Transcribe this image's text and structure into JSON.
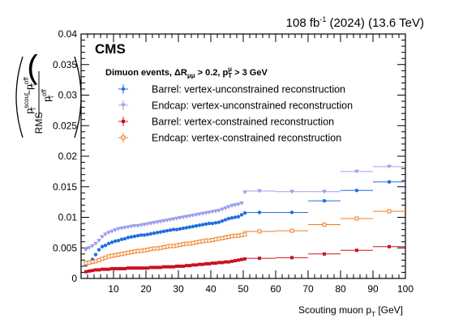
{
  "chart_data": {
    "type": "scatter",
    "header": {
      "experiment": "CMS",
      "lumi_prefix": "108 fb",
      "lumi_sup": "-1",
      "lumi_suffix": " (2024) (13.6 TeV)"
    },
    "selection": {
      "prefix": "Dimuon events,  ΔR",
      "sub1": "μμ",
      "mid": " > 0.2, p",
      "sub2": "T",
      "sup2": "μ",
      "suffix": " > 3 GeV"
    },
    "xlabel": "Scouting muon p",
    "xlabel_sub": "T",
    "xlabel_unit": " [GeV]",
    "ylabel": {
      "rms": "RMS",
      "p": "p",
      "sub": "T",
      "sup_scout": "scout",
      "minus": "−",
      "sup_off": "off"
    },
    "xlim": [
      0,
      100
    ],
    "ylim": [
      0,
      0.04
    ],
    "xticks": [
      10,
      20,
      30,
      40,
      50,
      60,
      70,
      80,
      90,
      100
    ],
    "yticks": [
      "0",
      "0.005",
      "0.01",
      "0.015",
      "0.02",
      "0.025",
      "0.03",
      "0.035",
      "0.04"
    ],
    "yticks_values": [
      0,
      0.005,
      0.01,
      0.015,
      0.02,
      0.025,
      0.03,
      0.035,
      0.04
    ],
    "legend_position": "upper-left",
    "fine_binning": {
      "x_min": 1,
      "x_max": 50,
      "bin_width": 1
    },
    "coarse_bins": [
      [
        50,
        60
      ],
      [
        60,
        70
      ],
      [
        70,
        80
      ],
      [
        80,
        90
      ],
      [
        90,
        100
      ]
    ],
    "series": [
      {
        "name": "Barrel: vertex-unconstrained reconstruction",
        "color": "#1f6fde",
        "marker": "filled-circle",
        "fine_y": [
          0.0022,
          0.0026,
          0.0031,
          0.0039,
          0.0047,
          0.0052,
          0.0054,
          0.0057,
          0.0059,
          0.0061,
          0.0062,
          0.0064,
          0.0065,
          0.0067,
          0.0068,
          0.0069,
          0.007,
          0.0071,
          0.0071,
          0.0072,
          0.0073,
          0.0074,
          0.0075,
          0.0076,
          0.0077,
          0.0078,
          0.0079,
          0.008,
          0.008,
          0.0081,
          0.0082,
          0.0083,
          0.0084,
          0.0085,
          0.0086,
          0.0087,
          0.0088,
          0.0089,
          0.009,
          0.009,
          0.0091,
          0.0092,
          0.0094,
          0.0096,
          0.0098,
          0.0099,
          0.01,
          0.0101,
          0.0104,
          0.0107
        ],
        "coarse_y": [
          0.0108,
          0.0108,
          0.0127,
          0.0144,
          0.0158
        ]
      },
      {
        "name": "Endcap: vertex-unconstrained reconstruction",
        "color": "#9f9fef",
        "marker": "open-triangle",
        "fine_y": [
          0.0047,
          0.005,
          0.0053,
          0.0057,
          0.0062,
          0.0068,
          0.0072,
          0.0075,
          0.0077,
          0.0079,
          0.0081,
          0.0082,
          0.0083,
          0.0084,
          0.0085,
          0.0086,
          0.0086,
          0.0087,
          0.0088,
          0.0089,
          0.009,
          0.0091,
          0.0092,
          0.0093,
          0.0094,
          0.0095,
          0.0096,
          0.0097,
          0.0098,
          0.0099,
          0.01,
          0.0101,
          0.0102,
          0.0103,
          0.0104,
          0.0105,
          0.0106,
          0.0107,
          0.0108,
          0.0109,
          0.011,
          0.0111,
          0.0113,
          0.0115,
          0.0117,
          0.0119,
          0.012,
          0.0121,
          0.0123,
          0.0141
        ],
        "coarse_y": [
          0.0143,
          0.0142,
          0.0142,
          0.0175,
          0.0183
        ]
      },
      {
        "name": "Barrel: vertex-constrained reconstruction",
        "color": "#c8141e",
        "marker": "filled-square",
        "fine_y": [
          0.0011,
          0.0012,
          0.0013,
          0.0014,
          0.0014,
          0.0015,
          0.0015,
          0.0015,
          0.0016,
          0.0016,
          0.0016,
          0.0016,
          0.0016,
          0.0017,
          0.0017,
          0.0017,
          0.0017,
          0.0017,
          0.0017,
          0.0017,
          0.0018,
          0.0018,
          0.0018,
          0.0018,
          0.0019,
          0.0019,
          0.0019,
          0.0019,
          0.002,
          0.002,
          0.002,
          0.0021,
          0.0021,
          0.0022,
          0.0022,
          0.0023,
          0.0023,
          0.0024,
          0.0024,
          0.0025,
          0.0025,
          0.0026,
          0.0026,
          0.0027,
          0.0027,
          0.0028,
          0.0029,
          0.003,
          0.0031,
          0.0032
        ],
        "coarse_y": [
          0.0033,
          0.0034,
          0.004,
          0.0046,
          0.0052
        ]
      },
      {
        "name": "Endcap: vertex-constrained reconstruction",
        "color": "#ef7c21",
        "marker": "open-square",
        "fine_y": [
          0.0025,
          0.0026,
          0.0027,
          0.0028,
          0.003,
          0.0032,
          0.0034,
          0.0036,
          0.0037,
          0.0038,
          0.0039,
          0.004,
          0.0041,
          0.0042,
          0.0043,
          0.0044,
          0.0045,
          0.0045,
          0.0046,
          0.0047,
          0.0048,
          0.0049,
          0.0049,
          0.005,
          0.0051,
          0.0052,
          0.0053,
          0.0053,
          0.0054,
          0.0055,
          0.0056,
          0.0057,
          0.0057,
          0.0058,
          0.0059,
          0.006,
          0.0061,
          0.0062,
          0.0062,
          0.0063,
          0.0064,
          0.0065,
          0.0066,
          0.0067,
          0.0068,
          0.0069,
          0.007,
          0.007,
          0.0071,
          0.0072
        ],
        "coarse_y": [
          0.0077,
          0.0078,
          0.0088,
          0.0098,
          0.011
        ]
      }
    ]
  }
}
